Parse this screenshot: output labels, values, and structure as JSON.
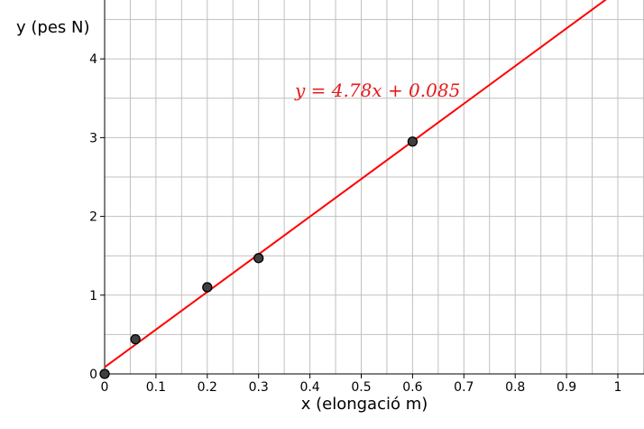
{
  "chart_data": {
    "type": "scatter",
    "xlabel": "x (elongació m)",
    "ylabel": "y (pes N)",
    "xlim": [
      0,
      1.05
    ],
    "ylim": [
      0,
      4.75
    ],
    "x_ticks": [
      0,
      0.1,
      0.2,
      0.3,
      0.4,
      0.5,
      0.6,
      0.7,
      0.8,
      0.9,
      1
    ],
    "x_tick_labels": [
      "0",
      "0.1",
      "0.2",
      "0.3",
      "0.4",
      "0.5",
      "0.6",
      "0.7",
      "0.8",
      "0.9",
      "1"
    ],
    "y_ticks": [
      0,
      1,
      2,
      3,
      4
    ],
    "y_tick_labels": [
      "0",
      "1",
      "2",
      "3",
      "4"
    ],
    "grid": true,
    "points": [
      {
        "x": 0,
        "y": 0
      },
      {
        "x": 0.06,
        "y": 0.44
      },
      {
        "x": 0.2,
        "y": 1.1
      },
      {
        "x": 0.3,
        "y": 1.47
      },
      {
        "x": 0.6,
        "y": 2.95
      }
    ],
    "fit_line": {
      "slope": 4.78,
      "intercept": 0.085
    },
    "equation": "y = 4.78x + 0.085",
    "colors": {
      "line": "#ff0000",
      "points": "#404040",
      "grid": "#c0c0c0",
      "equation": "#e41a1c"
    }
  }
}
